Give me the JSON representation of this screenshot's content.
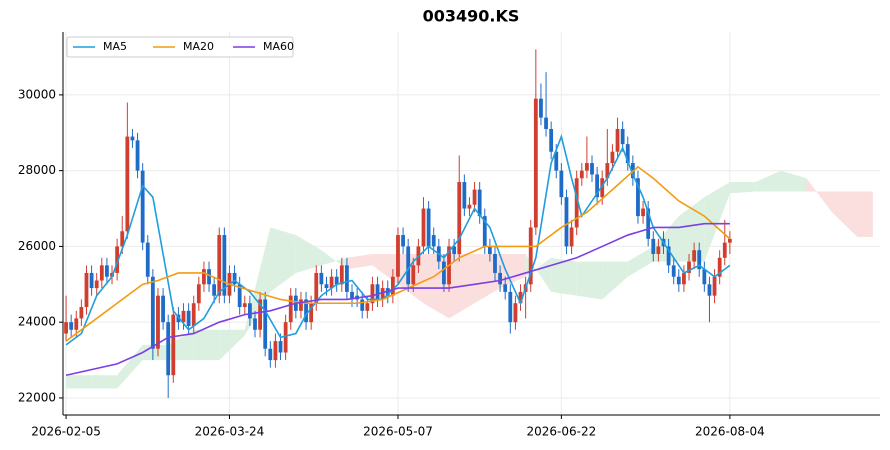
{
  "chart_data": {
    "type": "candlestick",
    "title": "003490.KS",
    "up_color": "#cf3e2f",
    "down_color": "#1f6cc8",
    "xlim": [
      -0.6,
      159.4
    ],
    "xticks": [
      {
        "value": 0,
        "label": "2026-02-05"
      },
      {
        "value": 32,
        "label": "2026-03-24"
      },
      {
        "value": 65,
        "label": "2026-05-07"
      },
      {
        "value": 97,
        "label": "2026-06-22"
      },
      {
        "value": 130,
        "label": "2026-08-04"
      }
    ],
    "ylim": [
      21550,
      31660
    ],
    "yticks": [
      22000,
      24000,
      26000,
      28000,
      30000
    ],
    "grid": true,
    "legend": "upper left",
    "ohlc": [
      [
        23700,
        24700,
        23500,
        24000
      ],
      [
        24000,
        24200,
        23600,
        23800
      ],
      [
        23800,
        24300,
        23600,
        24100
      ],
      [
        24100,
        24600,
        23900,
        24400
      ],
      [
        24400,
        25500,
        24200,
        25300
      ],
      [
        25300,
        25500,
        24700,
        24900
      ],
      [
        24900,
        25300,
        24700,
        25100
      ],
      [
        25100,
        25700,
        24900,
        25500
      ],
      [
        25500,
        25700,
        25000,
        25200
      ],
      [
        25200,
        25500,
        25000,
        25300
      ],
      [
        25300,
        26200,
        25100,
        26000
      ],
      [
        26000,
        26800,
        25800,
        26400
      ],
      [
        26400,
        29800,
        26200,
        28900
      ],
      [
        28900,
        29100,
        28600,
        28800
      ],
      [
        28800,
        29000,
        27800,
        28000
      ],
      [
        28000,
        28200,
        25900,
        26100
      ],
      [
        26100,
        26300,
        25000,
        25200
      ],
      [
        25200,
        25400,
        23000,
        23300
      ],
      [
        23300,
        24900,
        23100,
        24700
      ],
      [
        24700,
        24900,
        23800,
        24000
      ],
      [
        24000,
        24200,
        22000,
        22600
      ],
      [
        22600,
        24400,
        22400,
        24200
      ],
      [
        24200,
        24400,
        23800,
        24000
      ],
      [
        24000,
        24500,
        23800,
        24300
      ],
      [
        24300,
        24500,
        23700,
        23900
      ],
      [
        23900,
        24700,
        23700,
        24500
      ],
      [
        24500,
        25200,
        24300,
        25000
      ],
      [
        25000,
        25600,
        24800,
        25400
      ],
      [
        25400,
        25600,
        24800,
        25000
      ],
      [
        25000,
        25200,
        24500,
        24700
      ],
      [
        24700,
        26500,
        24500,
        26300
      ],
      [
        26300,
        26500,
        24500,
        24700
      ],
      [
        24700,
        25500,
        24500,
        25300
      ],
      [
        25300,
        25500,
        24800,
        25000
      ],
      [
        25000,
        25200,
        24200,
        24400
      ],
      [
        24400,
        24700,
        24200,
        24500
      ],
      [
        24500,
        24700,
        23900,
        24100
      ],
      [
        24100,
        24300,
        23600,
        23800
      ],
      [
        23800,
        24800,
        23600,
        24600
      ],
      [
        24600,
        24800,
        23100,
        23300
      ],
      [
        23300,
        23500,
        22800,
        23000
      ],
      [
        23000,
        23700,
        22800,
        23500
      ],
      [
        23500,
        23700,
        23000,
        23200
      ],
      [
        23200,
        24200,
        23000,
        24000
      ],
      [
        24000,
        24900,
        23800,
        24700
      ],
      [
        24700,
        24900,
        24100,
        24300
      ],
      [
        24300,
        24800,
        24100,
        24600
      ],
      [
        24600,
        24800,
        23800,
        24000
      ],
      [
        24000,
        24700,
        23800,
        24500
      ],
      [
        24500,
        25500,
        24300,
        25300
      ],
      [
        25300,
        25500,
        24800,
        25000
      ],
      [
        25000,
        25200,
        24700,
        24900
      ],
      [
        24900,
        25400,
        24700,
        25200
      ],
      [
        25200,
        25400,
        24800,
        25000
      ],
      [
        25000,
        25700,
        24800,
        25500
      ],
      [
        25500,
        25700,
        24600,
        24800
      ],
      [
        24800,
        25000,
        24400,
        24600
      ],
      [
        24700,
        24900,
        24400,
        24600
      ],
      [
        24600,
        24800,
        24100,
        24300
      ],
      [
        24300,
        24700,
        24100,
        24500
      ],
      [
        24500,
        25200,
        24300,
        25000
      ],
      [
        25000,
        25200,
        24400,
        24600
      ],
      [
        24600,
        25100,
        24400,
        24900
      ],
      [
        24900,
        25100,
        24500,
        24700
      ],
      [
        24700,
        25400,
        24500,
        25200
      ],
      [
        25200,
        26500,
        25000,
        26300
      ],
      [
        26300,
        26500,
        25800,
        26000
      ],
      [
        26000,
        26200,
        24800,
        25000
      ],
      [
        25000,
        25700,
        24800,
        25500
      ],
      [
        25500,
        26200,
        25300,
        26000
      ],
      [
        26000,
        27300,
        25800,
        27000
      ],
      [
        27000,
        27200,
        25800,
        26000
      ],
      [
        26300,
        26500,
        25800,
        26000
      ],
      [
        26000,
        26200,
        25400,
        25600
      ],
      [
        25600,
        25800,
        24800,
        25000
      ],
      [
        25000,
        26200,
        24800,
        26000
      ],
      [
        26000,
        26200,
        25600,
        25800
      ],
      [
        25800,
        28400,
        25600,
        27700
      ],
      [
        27700,
        27900,
        26800,
        27000
      ],
      [
        27000,
        27300,
        26800,
        27100
      ],
      [
        27100,
        27700,
        26900,
        27500
      ],
      [
        27500,
        27700,
        26600,
        26800
      ],
      [
        26800,
        27000,
        25800,
        26000
      ],
      [
        26000,
        26200,
        25600,
        25800
      ],
      [
        25800,
        26000,
        25100,
        25300
      ],
      [
        25300,
        25500,
        24800,
        25000
      ],
      [
        25000,
        25200,
        24600,
        24800
      ],
      [
        24800,
        25000,
        23700,
        24000
      ],
      [
        24000,
        24700,
        23800,
        24500
      ],
      [
        24500,
        25000,
        24300,
        24800
      ],
      [
        24800,
        25200,
        24100,
        25000
      ],
      [
        25000,
        26700,
        24800,
        26500
      ],
      [
        26500,
        31200,
        26300,
        29900
      ],
      [
        29900,
        30300,
        29200,
        29400
      ],
      [
        29400,
        30600,
        28900,
        29100
      ],
      [
        29100,
        29300,
        28300,
        28500
      ],
      [
        28500,
        28700,
        27800,
        28000
      ],
      [
        28000,
        28200,
        27100,
        27300
      ],
      [
        27300,
        27500,
        25800,
        26000
      ],
      [
        26000,
        26700,
        25800,
        26500
      ],
      [
        26500,
        28000,
        26300,
        27800
      ],
      [
        27800,
        28200,
        27600,
        28000
      ],
      [
        28000,
        28900,
        27800,
        28200
      ],
      [
        28200,
        28400,
        27700,
        27900
      ],
      [
        27900,
        28100,
        27100,
        27300
      ],
      [
        27300,
        28000,
        27100,
        27800
      ],
      [
        27800,
        29100,
        27600,
        28200
      ],
      [
        28200,
        28700,
        28000,
        28500
      ],
      [
        28500,
        29400,
        28300,
        29100
      ],
      [
        29100,
        29300,
        28500,
        28700
      ],
      [
        28700,
        28900,
        28000,
        28200
      ],
      [
        28200,
        28400,
        27600,
        27800
      ],
      [
        27800,
        28000,
        26600,
        26800
      ],
      [
        26800,
        27200,
        26600,
        27000
      ],
      [
        27000,
        27200,
        26000,
        26200
      ],
      [
        26200,
        26400,
        25600,
        25800
      ],
      [
        25800,
        26200,
        25600,
        26000
      ],
      [
        26200,
        26400,
        25800,
        26000
      ],
      [
        26000,
        26200,
        25300,
        25500
      ],
      [
        25500,
        25700,
        25000,
        25200
      ],
      [
        25200,
        25400,
        24800,
        25000
      ],
      [
        25000,
        25500,
        24800,
        25300
      ],
      [
        25300,
        25800,
        25100,
        25600
      ],
      [
        25600,
        26100,
        25400,
        25900
      ],
      [
        25900,
        26100,
        25200,
        25400
      ],
      [
        25400,
        25600,
        24800,
        25000
      ],
      [
        25000,
        25200,
        24000,
        24700
      ],
      [
        24700,
        25400,
        24500,
        25200
      ],
      [
        25200,
        25900,
        25000,
        25700
      ],
      [
        25700,
        26700,
        25500,
        26100
      ],
      [
        26100,
        26400,
        25800,
        26200
      ]
    ],
    "series": [
      {
        "name": "MA5",
        "color": "#1f9ede",
        "x": [
          0,
          3,
          6,
          9,
          12,
          15,
          17,
          19,
          21,
          24,
          27,
          30,
          33,
          36,
          39,
          42,
          45,
          47,
          50,
          53,
          56,
          59,
          62,
          65,
          68,
          71,
          74,
          77,
          80,
          83,
          86,
          89,
          92,
          95,
          97,
          99,
          101,
          103,
          106,
          109,
          111,
          113,
          115,
          118,
          121,
          124,
          127,
          130
        ],
        "values": [
          23400,
          23700,
          24700,
          25200,
          26300,
          27600,
          27300,
          25800,
          24300,
          23800,
          24100,
          24800,
          25100,
          24800,
          24300,
          23600,
          23700,
          24200,
          24700,
          25000,
          25100,
          24600,
          24600,
          25000,
          25600,
          26000,
          25700,
          26200,
          27000,
          26500,
          25400,
          24500,
          25700,
          28200,
          28900,
          27800,
          26800,
          27200,
          27800,
          28600,
          27900,
          27300,
          26500,
          25900,
          25300,
          25500,
          25200,
          25500
        ]
      },
      {
        "name": "MA20",
        "color": "#f39c12",
        "x": [
          0,
          5,
          10,
          15,
          18,
          22,
          27,
          32,
          37,
          42,
          47,
          52,
          57,
          62,
          67,
          72,
          77,
          82,
          87,
          92,
          97,
          102,
          107,
          112,
          115,
          120,
          125,
          130
        ],
        "values": [
          23500,
          24000,
          24500,
          25000,
          25100,
          25300,
          25300,
          25000,
          24800,
          24600,
          24500,
          24500,
          24500,
          24600,
          24900,
          25200,
          25700,
          26000,
          26000,
          26000,
          26500,
          26900,
          27500,
          28100,
          27800,
          27200,
          26800,
          26200
        ]
      },
      {
        "name": "MA60",
        "color": "#7b3fe4",
        "x": [
          0,
          10,
          15,
          20,
          25,
          30,
          35,
          40,
          45,
          50,
          55,
          60,
          65,
          70,
          75,
          80,
          85,
          90,
          95,
          100,
          105,
          110,
          115,
          120,
          125,
          130
        ],
        "values": [
          22600,
          22900,
          23200,
          23600,
          23700,
          24000,
          24200,
          24300,
          24500,
          24600,
          24600,
          24700,
          24900,
          24900,
          24900,
          25000,
          25100,
          25300,
          25500,
          25700,
          26000,
          26300,
          26500,
          26500,
          26600,
          26600
        ]
      }
    ],
    "cloud": {
      "up_color": "#d7eedd",
      "down_color": "#fbdada",
      "x": [
        0,
        5,
        10,
        15,
        20,
        25,
        30,
        35,
        40,
        45,
        50,
        55,
        60,
        65,
        70,
        75,
        80,
        85,
        90,
        95,
        100,
        105,
        110,
        115,
        120,
        125,
        130,
        135,
        140,
        145,
        150,
        155,
        158
      ],
      "span_a": [
        22600,
        22600,
        22600,
        23400,
        23400,
        23800,
        23800,
        23800,
        26500,
        26300,
        25900,
        25400,
        25500,
        25000,
        24500,
        24100,
        24500,
        24900,
        25200,
        25700,
        25600,
        25600,
        25600,
        26000,
        26800,
        27300,
        27700,
        27700,
        28000,
        27800,
        26900,
        26250,
        26250
      ],
      "span_b": [
        22250,
        22250,
        22250,
        23000,
        23000,
        23000,
        23000,
        23650,
        24800,
        25300,
        25500,
        25700,
        25800,
        25800,
        25800,
        25800,
        25800,
        25800,
        25800,
        24800,
        24700,
        24600,
        25200,
        25600,
        25600,
        25600,
        27400,
        27450,
        27450,
        27450,
        27450,
        27450,
        27450
      ]
    }
  }
}
